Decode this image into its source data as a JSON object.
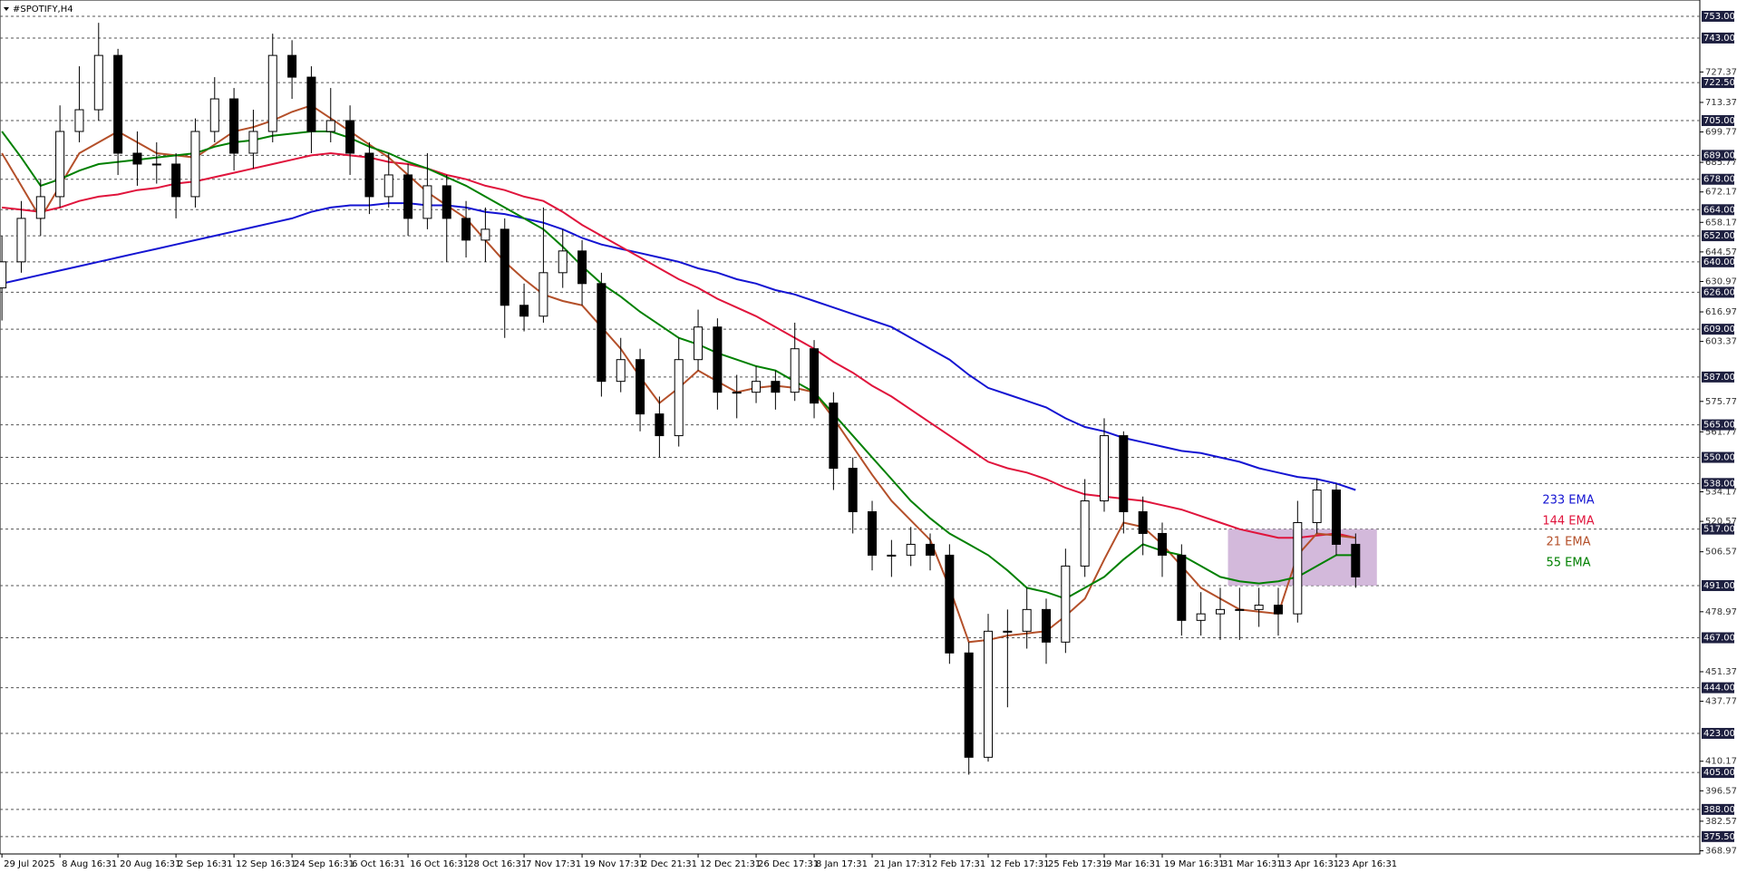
{
  "chart_data": {
    "type": "candlestick",
    "title": "#SPOTIFY,H4",
    "xlim": [
      -0.1,
      87.8
    ],
    "ylim": [
      367.5,
      760.5
    ],
    "x": [
      0,
      1,
      2,
      3,
      4,
      5,
      6,
      7,
      8,
      9,
      10,
      11,
      12,
      13,
      14,
      15,
      16,
      17,
      18,
      19,
      20,
      21,
      22,
      23,
      24,
      25,
      26,
      27,
      28,
      29,
      30,
      31,
      32,
      33,
      34,
      35,
      36,
      37,
      38,
      39,
      40,
      41,
      42,
      43,
      44,
      45,
      46,
      47,
      48,
      49,
      50,
      51,
      52,
      53,
      54,
      55,
      56,
      57,
      58,
      59,
      60,
      61,
      62,
      63,
      64,
      65,
      66,
      67,
      68,
      69,
      70
    ],
    "open": [
      628,
      640,
      660,
      670,
      700,
      710,
      735,
      690,
      685,
      685,
      670,
      700,
      715,
      690,
      700,
      735,
      725,
      700,
      705,
      690,
      670,
      680,
      660,
      675,
      660,
      650,
      655,
      620,
      615,
      635,
      645,
      630,
      585,
      595,
      570,
      560,
      595,
      610,
      580,
      580,
      585,
      580,
      600,
      575,
      545,
      525,
      505,
      505,
      510,
      505,
      460,
      412,
      470,
      470,
      480,
      465,
      500,
      530,
      560,
      525,
      515,
      505,
      475,
      478,
      480,
      480,
      482,
      478,
      520,
      535,
      510
    ],
    "high": [
      652,
      668,
      678,
      712,
      730,
      750,
      738,
      700,
      695,
      690,
      706,
      725,
      720,
      710,
      745,
      742,
      730,
      720,
      712,
      695,
      690,
      685,
      690,
      680,
      668,
      665,
      660,
      630,
      665,
      655,
      650,
      635,
      605,
      600,
      578,
      605,
      618,
      614,
      588,
      592,
      590,
      612,
      604,
      580,
      550,
      530,
      512,
      518,
      515,
      510,
      465,
      478,
      480,
      490,
      485,
      508,
      540,
      568,
      562,
      532,
      520,
      510,
      488,
      490,
      490,
      490,
      490,
      530,
      540,
      538,
      515
    ],
    "low": [
      613,
      635,
      652,
      665,
      695,
      705,
      680,
      675,
      676,
      660,
      665,
      695,
      682,
      683,
      695,
      715,
      690,
      695,
      680,
      662,
      665,
      652,
      655,
      640,
      642,
      640,
      605,
      608,
      612,
      628,
      620,
      578,
      580,
      562,
      550,
      555,
      590,
      572,
      568,
      575,
      572,
      576,
      568,
      535,
      515,
      498,
      495,
      500,
      498,
      455,
      404,
      410,
      435,
      462,
      455,
      460,
      495,
      525,
      515,
      505,
      495,
      468,
      468,
      466,
      466,
      472,
      468,
      474,
      515,
      505,
      490
    ],
    "close": [
      640,
      660,
      670,
      700,
      710,
      735,
      690,
      685,
      685,
      670,
      700,
      715,
      690,
      700,
      735,
      725,
      700,
      705,
      690,
      670,
      680,
      660,
      675,
      660,
      650,
      655,
      620,
      615,
      635,
      645,
      630,
      585,
      595,
      570,
      560,
      595,
      610,
      580,
      580,
      585,
      580,
      600,
      575,
      545,
      525,
      505,
      505,
      510,
      505,
      460,
      412,
      470,
      470,
      480,
      465,
      500,
      530,
      560,
      525,
      515,
      505,
      475,
      478,
      480,
      480,
      482,
      478,
      520,
      535,
      510,
      495
    ],
    "series": [
      {
        "name": "233 EMA",
        "color": "#1414d2",
        "values": [
          630,
          632,
          634,
          636,
          638,
          640,
          642,
          644,
          646,
          648,
          650,
          652,
          654,
          656,
          658,
          660,
          663,
          665,
          666,
          666,
          667,
          667,
          666,
          666,
          665,
          663,
          662,
          660,
          658,
          655,
          651,
          648,
          646,
          644,
          642,
          640,
          637,
          635,
          632,
          630,
          627,
          625,
          622,
          619,
          616,
          613,
          610,
          605,
          600,
          595,
          588,
          582,
          579,
          576,
          573,
          568,
          564,
          562,
          559,
          557,
          555,
          553,
          552,
          550,
          548,
          545,
          543,
          541,
          540,
          538,
          535
        ]
      },
      {
        "name": "144 EMA",
        "color": "#e0143c",
        "values": [
          665,
          664,
          663,
          665,
          668,
          670,
          671,
          673,
          674,
          676,
          677,
          679,
          681,
          683,
          685,
          687,
          689,
          690,
          689,
          688,
          686,
          685,
          683,
          680,
          678,
          675,
          673,
          670,
          668,
          663,
          657,
          652,
          647,
          642,
          637,
          632,
          628,
          623,
          619,
          615,
          610,
          605,
          600,
          594,
          589,
          583,
          578,
          572,
          566,
          560,
          554,
          548,
          545,
          543,
          540,
          536,
          533,
          532,
          531,
          530,
          528,
          526,
          523,
          520,
          517,
          515,
          513,
          513,
          514,
          515,
          513
        ]
      },
      {
        "name": "21 EMA",
        "color": "#b4502a",
        "values": [
          690,
          675,
          660,
          675,
          690,
          695,
          700,
          695,
          690,
          689,
          688,
          694,
          700,
          702,
          705,
          709,
          712,
          706,
          700,
          694,
          688,
          680,
          672,
          666,
          660,
          650,
          640,
          632,
          625,
          622,
          620,
          610,
          600,
          587,
          575,
          582,
          590,
          585,
          580,
          582,
          583,
          582,
          580,
          568,
          555,
          542,
          530,
          521,
          512,
          490,
          465,
          466,
          468,
          469,
          470,
          477,
          485,
          503,
          520,
          518,
          510,
          500,
          490,
          485,
          480,
          479,
          478,
          505,
          515,
          514,
          513
        ]
      },
      {
        "name": "55 EMA",
        "color": "#008000",
        "values": [
          700,
          688,
          675,
          678,
          682,
          685,
          686,
          687,
          688,
          689,
          690,
          693,
          695,
          696,
          698,
          699,
          700,
          700,
          697,
          693,
          690,
          686,
          683,
          679,
          675,
          670,
          665,
          660,
          655,
          647,
          638,
          630,
          624,
          617,
          611,
          605,
          602,
          598,
          595,
          592,
          590,
          585,
          580,
          570,
          560,
          550,
          540,
          530,
          522,
          515,
          510,
          505,
          498,
          490,
          488,
          485,
          490,
          495,
          503,
          510,
          507,
          505,
          500,
          495,
          493,
          492,
          493,
          495,
          500,
          505,
          505
        ]
      }
    ],
    "highlight": {
      "xlim": [
        63.4,
        71.1
      ],
      "ylim": [
        491,
        517
      ],
      "color": "#c8a8d2"
    },
    "levels": [
      {
        "value": 753,
        "label": "753.00"
      },
      {
        "value": 743,
        "label": "743.00"
      },
      {
        "value": 722.5,
        "label": "722.50"
      },
      {
        "value": 705,
        "label": "705.00"
      },
      {
        "value": 689,
        "label": "689.00"
      },
      {
        "value": 678,
        "label": "678.00"
      },
      {
        "value": 664,
        "label": "664.00"
      },
      {
        "value": 652,
        "label": "652.00"
      },
      {
        "value": 640,
        "label": "640.00"
      },
      {
        "value": 626,
        "label": "626.00"
      },
      {
        "value": 609,
        "label": "609.00"
      },
      {
        "value": 587,
        "label": "587.00"
      },
      {
        "value": 565,
        "label": "565.00"
      },
      {
        "value": 550,
        "label": "550.00"
      },
      {
        "value": 538,
        "label": "538.00"
      },
      {
        "value": 517,
        "label": "517.00"
      },
      {
        "value": 491,
        "label": "491.00"
      },
      {
        "value": 467,
        "label": "467.00"
      },
      {
        "value": 444,
        "label": "444.00"
      },
      {
        "value": 423,
        "label": "423.00"
      },
      {
        "value": 405,
        "label": "405.00"
      },
      {
        "value": 388,
        "label": "388.00"
      },
      {
        "value": 375.5,
        "label": "375.50"
      }
    ],
    "yticks": [
      727.37,
      713.37,
      699.77,
      685.77,
      672.17,
      658.17,
      644.57,
      630.97,
      616.97,
      603.37,
      575.77,
      561.77,
      534.17,
      520.57,
      506.57,
      478.97,
      451.37,
      437.77,
      410.17,
      396.57,
      382.57,
      368.97
    ],
    "xticks": [
      {
        "value": 0,
        "label": "29 Jul 2025"
      },
      {
        "value": 3,
        "label": "8 Aug 16:31"
      },
      {
        "value": 6,
        "label": "20 Aug 16:31"
      },
      {
        "value": 9,
        "label": "2 Sep 16:31"
      },
      {
        "value": 12,
        "label": "12 Sep 16:31"
      },
      {
        "value": 15,
        "label": "24 Sep 16:31"
      },
      {
        "value": 18,
        "label": "6 Oct 16:31"
      },
      {
        "value": 21,
        "label": "16 Oct 16:31"
      },
      {
        "value": 24,
        "label": "28 Oct 16:31"
      },
      {
        "value": 27,
        "label": "7 Nov 17:31"
      },
      {
        "value": 30,
        "label": "19 Nov 17:31"
      },
      {
        "value": 33,
        "label": "2 Dec 21:31"
      },
      {
        "value": 36,
        "label": "12 Dec 21:31"
      },
      {
        "value": 39,
        "label": "26 Dec 17:31"
      },
      {
        "value": 42,
        "label": "8 Jan 17:31"
      },
      {
        "value": 45,
        "label": "21 Jan 17:31"
      },
      {
        "value": 48,
        "label": "2 Feb 17:31"
      },
      {
        "value": 51,
        "label": "12 Feb 17:31"
      },
      {
        "value": 54,
        "label": "25 Feb 17:31"
      },
      {
        "value": 57,
        "label": "9 Mar 16:31"
      },
      {
        "value": 60,
        "label": "19 Mar 16:31"
      },
      {
        "value": 63,
        "label": "31 Mar 16:31"
      },
      {
        "value": 66,
        "label": "13 Apr 16:31"
      },
      {
        "value": 69,
        "label": "23 Apr 16:31"
      }
    ]
  }
}
